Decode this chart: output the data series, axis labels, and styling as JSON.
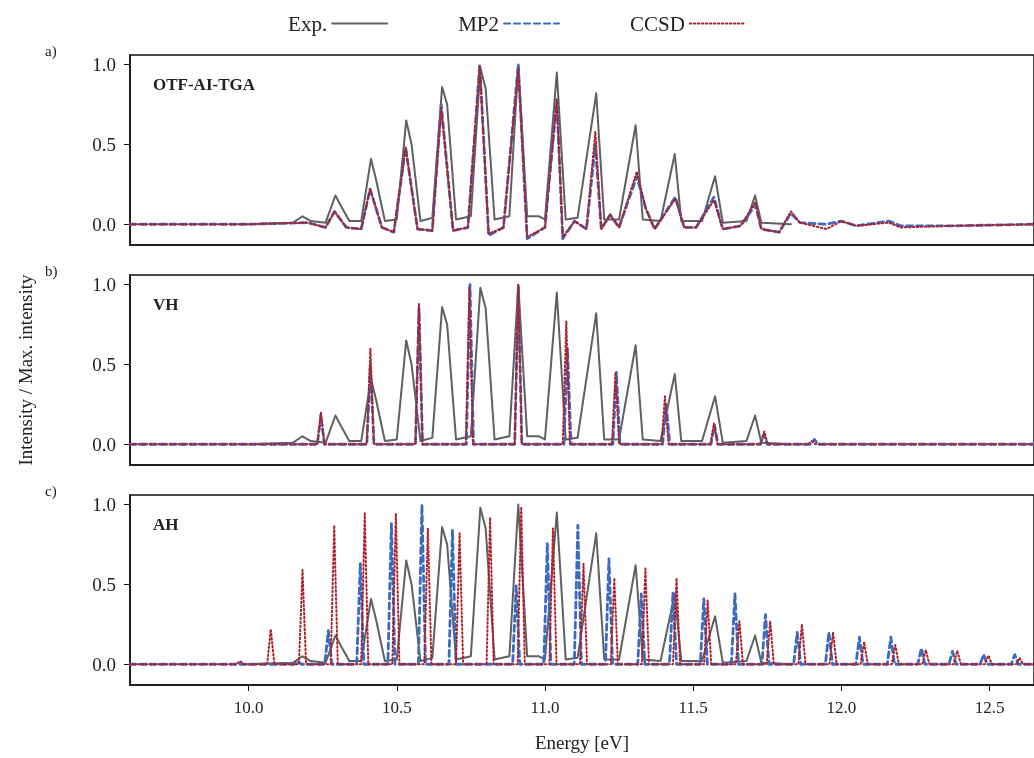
{
  "chart_data": [
    {
      "type": "line",
      "title": "OTF-AI-TGA",
      "annotations": [
        "a)"
      ],
      "legend": "top",
      "tick_labels": "y",
      "xlim": [
        9.6,
        12.65
      ],
      "ylim": [
        -0.13,
        1.06
      ],
      "yticks": [
        {
          "value": 0,
          "label": "0.0"
        },
        {
          "value": 0.5,
          "label": "0.5"
        },
        {
          "value": 1,
          "label": "1.0"
        }
      ],
      "series": [
        {
          "name": "Exp.",
          "color": "#606060",
          "line_style": "solid",
          "x": [
            10.0,
            10.15,
            10.182,
            10.21,
            10.26,
            10.293,
            10.31,
            10.34,
            10.38,
            10.413,
            10.43,
            10.46,
            10.5,
            10.532,
            10.55,
            10.58,
            10.62,
            10.653,
            10.67,
            10.7,
            10.75,
            10.782,
            10.8,
            10.83,
            10.88,
            10.91,
            10.94,
            10.98,
            11.0,
            11.04,
            11.07,
            11.11,
            11.173,
            11.2,
            11.25,
            11.306,
            11.33,
            11.39,
            11.438,
            11.46,
            11.53,
            11.574,
            11.6,
            11.68,
            11.709,
            11.73,
            11.83
          ],
          "values": [
            0.0,
            0.01,
            0.05,
            0.02,
            0.01,
            0.18,
            0.12,
            0.02,
            0.02,
            0.41,
            0.28,
            0.02,
            0.03,
            0.65,
            0.5,
            0.02,
            0.04,
            0.86,
            0.75,
            0.03,
            0.05,
            0.98,
            0.85,
            0.03,
            0.05,
            1.0,
            0.05,
            0.05,
            0.03,
            0.95,
            0.03,
            0.04,
            0.82,
            0.03,
            0.03,
            0.62,
            0.03,
            0.02,
            0.44,
            0.02,
            0.02,
            0.3,
            0.01,
            0.02,
            0.18,
            0.01,
            0.0
          ]
        },
        {
          "name": "MP2",
          "color": "#3b6bbf",
          "line_style": "dashed",
          "x": [
            9.6,
            10.0,
            10.2,
            10.26,
            10.29,
            10.33,
            10.38,
            10.41,
            10.45,
            10.49,
            10.53,
            10.57,
            10.62,
            10.65,
            10.69,
            10.74,
            10.78,
            10.81,
            10.86,
            10.91,
            10.94,
            11.0,
            11.04,
            11.06,
            11.1,
            11.14,
            11.17,
            11.19,
            11.22,
            11.25,
            11.31,
            11.34,
            11.37,
            11.44,
            11.47,
            11.51,
            11.57,
            11.6,
            11.66,
            11.71,
            11.73,
            11.79,
            11.83,
            11.86,
            11.95,
            12.0,
            12.05,
            12.16,
            12.2,
            12.38,
            12.65
          ],
          "values": [
            0,
            0,
            0.01,
            -0.02,
            0.08,
            -0.02,
            -0.03,
            0.22,
            -0.02,
            -0.05,
            0.48,
            -0.03,
            -0.04,
            0.75,
            -0.04,
            -0.02,
            1.0,
            -0.07,
            -0.02,
            1.0,
            -0.09,
            -0.02,
            0.78,
            -0.09,
            0.02,
            -0.03,
            0.5,
            -0.03,
            0.06,
            -0.02,
            0.3,
            0.1,
            -0.03,
            0.17,
            -0.02,
            -0.02,
            0.17,
            -0.03,
            -0.01,
            0.12,
            -0.03,
            -0.05,
            0.07,
            0.01,
            0,
            0.02,
            -0.01,
            0.02,
            -0.01,
            -0.01,
            0
          ]
        },
        {
          "name": "CCSD",
          "color": "#b0202a",
          "line_style": "dotted",
          "x": [
            9.6,
            10.0,
            10.2,
            10.26,
            10.29,
            10.33,
            10.38,
            10.41,
            10.45,
            10.49,
            10.53,
            10.57,
            10.62,
            10.65,
            10.69,
            10.74,
            10.78,
            10.81,
            10.86,
            10.91,
            10.94,
            11.0,
            11.04,
            11.06,
            11.1,
            11.14,
            11.17,
            11.19,
            11.22,
            11.25,
            11.31,
            11.34,
            11.37,
            11.44,
            11.47,
            11.51,
            11.57,
            11.6,
            11.66,
            11.71,
            11.73,
            11.79,
            11.83,
            11.86,
            11.95,
            12.0,
            12.05,
            12.16,
            12.2,
            12.38,
            12.65
          ],
          "values": [
            0,
            0,
            0.01,
            -0.02,
            0.08,
            -0.02,
            -0.03,
            0.22,
            -0.02,
            -0.05,
            0.48,
            -0.03,
            -0.04,
            0.73,
            -0.04,
            -0.02,
            0.99,
            -0.06,
            -0.02,
            0.97,
            -0.08,
            -0.02,
            0.78,
            -0.08,
            0.02,
            -0.03,
            0.58,
            -0.03,
            0.06,
            -0.02,
            0.33,
            0.1,
            -0.03,
            0.16,
            -0.02,
            -0.02,
            0.15,
            -0.03,
            -0.01,
            0.14,
            -0.03,
            -0.05,
            0.08,
            0.01,
            -0.03,
            0.02,
            -0.01,
            0.01,
            -0.02,
            -0.01,
            0
          ]
        }
      ]
    },
    {
      "type": "line",
      "title": "VH",
      "annotations": [
        "b)"
      ],
      "ylabel": "Intensity / Max. intensity",
      "tick_labels": "y",
      "xlim": [
        9.6,
        12.65
      ],
      "ylim": [
        -0.13,
        1.06
      ],
      "yticks": [
        {
          "value": 0,
          "label": "0.0"
        },
        {
          "value": 0.5,
          "label": "0.5"
        },
        {
          "value": 1,
          "label": "1.0"
        }
      ],
      "series": [
        {
          "color": "#606060",
          "line_style": "solid",
          "x": [
            10.0,
            10.15,
            10.182,
            10.21,
            10.26,
            10.293,
            10.31,
            10.34,
            10.38,
            10.413,
            10.43,
            10.46,
            10.5,
            10.532,
            10.55,
            10.58,
            10.62,
            10.653,
            10.67,
            10.7,
            10.75,
            10.782,
            10.8,
            10.83,
            10.88,
            10.91,
            10.94,
            10.98,
            11.0,
            11.04,
            11.07,
            11.11,
            11.173,
            11.2,
            11.25,
            11.306,
            11.33,
            11.39,
            11.438,
            11.46,
            11.53,
            11.574,
            11.6,
            11.68,
            11.709,
            11.73,
            11.83
          ],
          "values": [
            0.0,
            0.01,
            0.05,
            0.02,
            0.01,
            0.18,
            0.12,
            0.02,
            0.02,
            0.41,
            0.28,
            0.02,
            0.03,
            0.65,
            0.5,
            0.02,
            0.04,
            0.86,
            0.75,
            0.03,
            0.05,
            0.98,
            0.85,
            0.03,
            0.05,
            1.0,
            0.05,
            0.05,
            0.03,
            0.95,
            0.03,
            0.04,
            0.82,
            0.03,
            0.03,
            0.62,
            0.03,
            0.02,
            0.44,
            0.02,
            0.02,
            0.3,
            0.01,
            0.02,
            0.18,
            0.01,
            0.0
          ]
        },
        {
          "color": "#3b6bbf",
          "line_style": "dashed",
          "x": [
            9.6,
            10.232,
            10.244,
            10.256,
            10.399,
            10.411,
            10.423,
            10.563,
            10.575,
            10.587,
            10.735,
            10.747,
            10.759,
            10.898,
            10.91,
            10.922,
            11.064,
            11.076,
            11.088,
            11.229,
            11.241,
            11.253,
            11.397,
            11.409,
            11.421,
            11.56,
            11.572,
            11.584,
            11.726,
            11.738,
            11.75,
            11.897,
            11.909,
            11.921,
            12.65
          ],
          "values": [
            0,
            0,
            0.18,
            0,
            0,
            0.5,
            0,
            0,
            0.85,
            0,
            0,
            1.0,
            0,
            0,
            0.98,
            0,
            0,
            0.6,
            0,
            0,
            0.45,
            0,
            0,
            0.25,
            0,
            0,
            0.12,
            0,
            0,
            0.06,
            0,
            0,
            0.03,
            0,
            0
          ]
        },
        {
          "color": "#b0202a",
          "line_style": "dotted",
          "x": [
            9.6,
            10.232,
            10.244,
            10.256,
            10.399,
            10.411,
            10.423,
            10.563,
            10.575,
            10.587,
            10.733,
            10.745,
            10.757,
            10.898,
            10.91,
            10.922,
            11.06,
            11.072,
            11.084,
            11.226,
            11.238,
            11.25,
            11.393,
            11.405,
            11.417,
            11.558,
            11.57,
            11.582,
            11.728,
            11.74,
            11.752,
            11.888,
            11.9,
            11.912,
            12.65
          ],
          "values": [
            0,
            0,
            0.2,
            0,
            0,
            0.6,
            0,
            0,
            0.88,
            0,
            0,
            0.98,
            0,
            0,
            1.0,
            0,
            0,
            0.77,
            0,
            0,
            0.45,
            0,
            0,
            0.3,
            0,
            0,
            0.13,
            0,
            0,
            0.08,
            0,
            0,
            0.02,
            0,
            0
          ]
        }
      ]
    },
    {
      "type": "line",
      "title": "AH",
      "annotations": [
        "c)"
      ],
      "xlabel": "Energy [eV]",
      "xlim": [
        9.6,
        12.65
      ],
      "xticks": [
        {
          "value": 10,
          "label": "10.0"
        },
        {
          "value": 10.5,
          "label": "10.5"
        },
        {
          "value": 11,
          "label": "11.0"
        },
        {
          "value": 11.5,
          "label": "11.5"
        },
        {
          "value": 12,
          "label": "12.0"
        },
        {
          "value": 12.5,
          "label": "12.5"
        }
      ],
      "ylim": [
        -0.13,
        1.06
      ],
      "yticks": [
        {
          "value": 0,
          "label": "0.0"
        },
        {
          "value": 0.5,
          "label": "0.5"
        },
        {
          "value": 1,
          "label": "1.0"
        }
      ],
      "series": [
        {
          "color": "#606060",
          "line_style": "solid",
          "x": [
            10.0,
            10.15,
            10.182,
            10.21,
            10.26,
            10.293,
            10.31,
            10.34,
            10.38,
            10.413,
            10.43,
            10.46,
            10.5,
            10.532,
            10.55,
            10.58,
            10.62,
            10.653,
            10.67,
            10.7,
            10.75,
            10.782,
            10.8,
            10.83,
            10.88,
            10.91,
            10.94,
            10.98,
            11.0,
            11.04,
            11.07,
            11.11,
            11.173,
            11.2,
            11.25,
            11.306,
            11.33,
            11.39,
            11.438,
            11.46,
            11.53,
            11.574,
            11.6,
            11.68,
            11.709,
            11.73,
            11.83
          ],
          "values": [
            0.0,
            0.01,
            0.05,
            0.02,
            0.01,
            0.18,
            0.12,
            0.02,
            0.02,
            0.41,
            0.28,
            0.02,
            0.03,
            0.65,
            0.5,
            0.02,
            0.04,
            0.86,
            0.75,
            0.03,
            0.05,
            0.98,
            0.85,
            0.03,
            0.05,
            1.0,
            0.05,
            0.05,
            0.03,
            0.95,
            0.03,
            0.04,
            0.82,
            0.03,
            0.03,
            0.62,
            0.03,
            0.02,
            0.44,
            0.02,
            0.02,
            0.3,
            0.01,
            0.02,
            0.18,
            0.01,
            0.0
          ]
        },
        {
          "color": "#3b6bbf",
          "line_style": "dashed",
          "x": [
            9.6,
            10.154,
            10.166,
            10.178,
            10.257,
            10.269,
            10.281,
            10.365,
            10.377,
            10.389,
            10.47,
            10.482,
            10.494,
            10.573,
            10.585,
            10.597,
            10.676,
            10.688,
            10.7,
            10.891,
            10.903,
            10.915,
            10.996,
            11.008,
            11.02,
            11.099,
            11.111,
            11.123,
            11.204,
            11.216,
            11.228,
            11.313,
            11.325,
            11.337,
            11.42,
            11.432,
            11.444,
            11.524,
            11.536,
            11.548,
            11.629,
            11.641,
            11.653,
            11.732,
            11.744,
            11.756,
            11.839,
            11.851,
            11.863,
            11.946,
            11.958,
            11.97,
            12.049,
            12.061,
            12.073,
            12.155,
            12.167,
            12.179,
            12.258,
            12.27,
            12.282,
            12.363,
            12.375,
            12.387,
            12.468,
            12.48,
            12.492,
            12.573,
            12.585,
            12.597,
            12.65
          ],
          "values": [
            0,
            0,
            0.02,
            0,
            0,
            0.21,
            0,
            0,
            0.63,
            0,
            0,
            0.88,
            0,
            0,
            1.0,
            0,
            0,
            0.84,
            0,
            0,
            0.49,
            0,
            0,
            0.76,
            0,
            0,
            0.87,
            0,
            0,
            0.66,
            0,
            0,
            0.44,
            0,
            0,
            0.45,
            0,
            0,
            0.41,
            0,
            0,
            0.44,
            0,
            0,
            0.31,
            0,
            0,
            0.2,
            0,
            0,
            0.2,
            0,
            0,
            0.17,
            0,
            0,
            0.17,
            0,
            0,
            0.1,
            0,
            0,
            0.08,
            0,
            0,
            0.06,
            0,
            0,
            0.06,
            0,
            0
          ]
        },
        {
          "color": "#b0202a",
          "line_style": "dotted",
          "x": [
            9.6,
            9.959,
            9.971,
            9.983,
            10.063,
            10.075,
            10.087,
            10.17,
            10.182,
            10.194,
            10.277,
            10.289,
            10.301,
            10.38,
            10.392,
            10.404,
            10.485,
            10.497,
            10.509,
            10.593,
            10.605,
            10.617,
            10.7,
            10.712,
            10.724,
            10.803,
            10.815,
            10.827,
            10.908,
            10.92,
            10.932,
            11.015,
            11.027,
            11.039,
            11.118,
            11.13,
            11.142,
            11.222,
            11.234,
            11.246,
            11.327,
            11.339,
            11.351,
            11.432,
            11.444,
            11.456,
            11.537,
            11.549,
            11.561,
            11.644,
            11.656,
            11.668,
            11.748,
            11.76,
            11.772,
            11.855,
            11.867,
            11.879,
            11.96,
            11.972,
            11.984,
            12.065,
            12.077,
            12.089,
            12.17,
            12.182,
            12.194,
            12.273,
            12.285,
            12.297,
            12.379,
            12.391,
            12.403,
            12.484,
            12.496,
            12.508,
            12.589,
            12.601,
            12.613,
            12.65
          ],
          "values": [
            0,
            0,
            0.02,
            0,
            0,
            0.22,
            0,
            0,
            0.59,
            0,
            0,
            0.87,
            0,
            0,
            0.945,
            0,
            0,
            0.945,
            0,
            0,
            0.85,
            0,
            0,
            0.82,
            0,
            0,
            0.92,
            0,
            0,
            0.985,
            0,
            0,
            0.85,
            0,
            0,
            0.63,
            0,
            0,
            0.54,
            0,
            0,
            0.6,
            0,
            0,
            0.54,
            0,
            0,
            0.4,
            0,
            0,
            0.27,
            0,
            0,
            0.27,
            0,
            0,
            0.25,
            0,
            0,
            0.2,
            0,
            0,
            0.14,
            0,
            0,
            0.12,
            0,
            0,
            0.09,
            0,
            0,
            0.085,
            0,
            0,
            0.055,
            0,
            0,
            0.04,
            0,
            0
          ]
        }
      ]
    }
  ]
}
